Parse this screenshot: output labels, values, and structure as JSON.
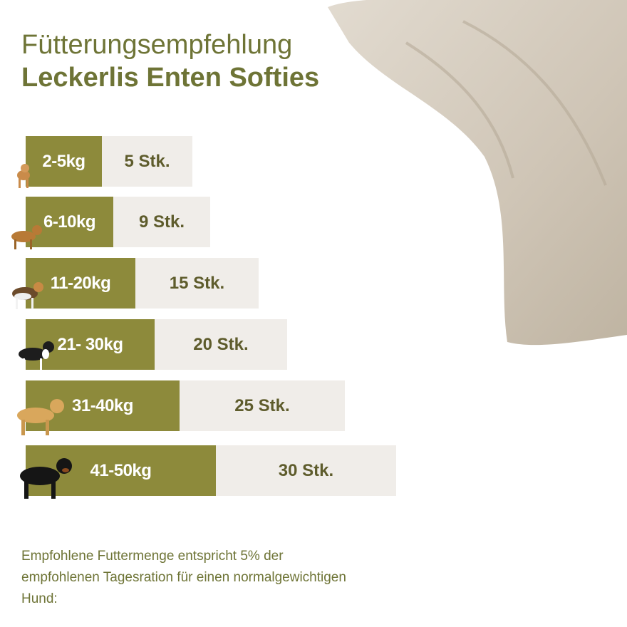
{
  "header": {
    "title": "Fütterungsempfehlung",
    "subtitle": "Leckerlis Enten Softies"
  },
  "rows": [
    {
      "weight": "2-5kg",
      "amount": "5 Stk."
    },
    {
      "weight": "6-10kg",
      "amount": "9 Stk."
    },
    {
      "weight": "11-20kg",
      "amount": "15 Stk."
    },
    {
      "weight": "21- 30kg",
      "amount": "20 Stk."
    },
    {
      "weight": "31-40kg",
      "amount": "25 Stk."
    },
    {
      "weight": "41-50kg",
      "amount": "30 Stk."
    }
  ],
  "footnote": "Empfohlene Futtermenge entspricht 5% der empfohlenen Tagesration für einen normalgewichtigen Hund:"
}
